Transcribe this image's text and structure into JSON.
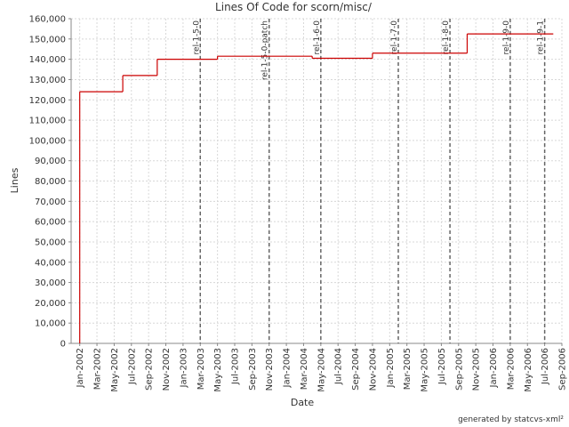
{
  "chart_data": {
    "type": "step-line",
    "title": "Lines Of Code for scorn/misc/",
    "xlabel": "Date",
    "ylabel": "Lines",
    "footer": "generated by statcvs-xml²",
    "xlim": [
      "2001-12",
      "2006-09"
    ],
    "xticks": [
      {
        "value": "2002-01",
        "label": "Jan-2002"
      },
      {
        "value": "2002-03",
        "label": "Mar-2002"
      },
      {
        "value": "2002-05",
        "label": "May-2002"
      },
      {
        "value": "2002-07",
        "label": "Jul-2002"
      },
      {
        "value": "2002-09",
        "label": "Sep-2002"
      },
      {
        "value": "2002-11",
        "label": "Nov-2002"
      },
      {
        "value": "2003-01",
        "label": "Jan-2003"
      },
      {
        "value": "2003-03",
        "label": "Mar-2003"
      },
      {
        "value": "2003-05",
        "label": "May-2003"
      },
      {
        "value": "2003-07",
        "label": "Jul-2003"
      },
      {
        "value": "2003-09",
        "label": "Sep-2003"
      },
      {
        "value": "2003-11",
        "label": "Nov-2003"
      },
      {
        "value": "2004-01",
        "label": "Jan-2004"
      },
      {
        "value": "2004-03",
        "label": "Mar-2004"
      },
      {
        "value": "2004-05",
        "label": "May-2004"
      },
      {
        "value": "2004-07",
        "label": "Jul-2004"
      },
      {
        "value": "2004-09",
        "label": "Sep-2004"
      },
      {
        "value": "2004-11",
        "label": "Nov-2004"
      },
      {
        "value": "2005-01",
        "label": "Jan-2005"
      },
      {
        "value": "2005-03",
        "label": "Mar-2005"
      },
      {
        "value": "2005-05",
        "label": "May-2005"
      },
      {
        "value": "2005-07",
        "label": "Jul-2005"
      },
      {
        "value": "2005-09",
        "label": "Sep-2005"
      },
      {
        "value": "2005-11",
        "label": "Nov-2005"
      },
      {
        "value": "2006-01",
        "label": "Jan-2006"
      },
      {
        "value": "2006-03",
        "label": "Mar-2006"
      },
      {
        "value": "2006-05",
        "label": "May-2006"
      },
      {
        "value": "2006-07",
        "label": "Jul-2006"
      },
      {
        "value": "2006-09",
        "label": "Sep-2006"
      }
    ],
    "ylim": [
      0,
      160000
    ],
    "yticks": [
      0,
      {
        "value": 10000,
        "label": "10,000"
      },
      {
        "value": 20000,
        "label": "20,000"
      },
      {
        "value": 30000,
        "label": "30,000"
      },
      {
        "value": 40000,
        "label": "40,000"
      },
      {
        "value": 50000,
        "label": "50,000"
      },
      {
        "value": 60000,
        "label": "60,000"
      },
      {
        "value": 70000,
        "label": "70,000"
      },
      {
        "value": 80000,
        "label": "80,000"
      },
      {
        "value": 90000,
        "label": "90,000"
      },
      {
        "value": 100000,
        "label": "100,000"
      },
      {
        "value": 110000,
        "label": "110,000"
      },
      {
        "value": 120000,
        "label": "120,000"
      },
      {
        "value": 130000,
        "label": "130,000"
      },
      {
        "value": 140000,
        "label": "140,000"
      },
      {
        "value": 150000,
        "label": "150,000"
      },
      {
        "value": 160000,
        "label": "160,000"
      }
    ],
    "grid": true,
    "series": [
      {
        "name": "Lines",
        "color": "#cc0000",
        "x": [
          "2002-01",
          "2002-06",
          "2002-10",
          "2003-05",
          "2004-04",
          "2004-11",
          "2005-10",
          "2006-08"
        ],
        "values": [
          124000,
          132000,
          140000,
          141500,
          140500,
          143000,
          152500,
          152500
        ]
      }
    ],
    "markers": [
      {
        "x": "2003-03",
        "label": "rel-1-5-0"
      },
      {
        "x": "2003-11",
        "label": "rel-1-5-0-patch"
      },
      {
        "x": "2004-05",
        "label": "rel-1-6-0"
      },
      {
        "x": "2005-02",
        "label": "rel-1-7-0"
      },
      {
        "x": "2005-08",
        "label": "rel-1-8-0"
      },
      {
        "x": "2006-03",
        "label": "rel-1-9-0"
      },
      {
        "x": "2006-07",
        "label": "rel-1-9-1"
      }
    ]
  }
}
